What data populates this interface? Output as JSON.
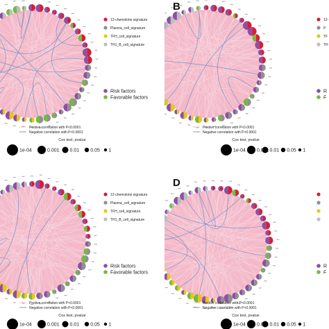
{
  "colors": {
    "background": "#ffffff",
    "circle_fill": "#f4b8c8",
    "positive_edge": "#f7d6e0",
    "negative_edge": "#6f8fc4",
    "risk": "#8e4fa3",
    "favorable": "#76b842",
    "chemokine": "#d2203a",
    "plasma": "#909090",
    "tfh": "#e8c51e",
    "th1b": "#bdbdbd"
  },
  "panels": [
    {
      "letter": "",
      "signatures": [
        "12-chemokine signature",
        "Plasma_cell_signature",
        "TFH_cell_signature",
        "TH1_B_cell_signature"
      ],
      "factors": [
        "Risk factors",
        "Favorable factors"
      ],
      "correlations": [
        "Postive correlation with P<0.0001",
        "Negative correlation with P<0.0001"
      ],
      "size_title": "Cox test, pvalue",
      "size_labels": [
        "1e-04",
        "0.001",
        "0.01",
        "0.05",
        "1"
      ]
    },
    {
      "letter": "B",
      "signatures": [
        "12-",
        "P",
        "TF",
        "TH"
      ],
      "factors": [
        "R",
        "F"
      ],
      "correlations": [
        "Postive correlation with P<0.0001",
        "Negative correlation with P<0.0001"
      ],
      "size_title": "Cox test, pvalue",
      "size_labels": [
        "1e-04",
        "0.001",
        "0.01",
        "0.05",
        "1"
      ]
    },
    {
      "letter": "",
      "signatures": [
        "12-chemokine signature",
        "Plasma_cell_signature",
        "TFH_cell_signature",
        "TH1_B_cell_signature"
      ],
      "factors": [
        "Risk factors",
        "Favorable factors"
      ],
      "correlations": [
        "Postive correlation with P<0.0001",
        "Negative correlation with P<0.0001"
      ],
      "size_title": "Cox test, pvalue",
      "size_labels": [
        "1e-04",
        "0.001",
        "0.01",
        "0.05",
        "1"
      ]
    },
    {
      "letter": "D",
      "signatures": [
        "",
        "",
        "",
        ""
      ],
      "factors": [
        "R",
        "F"
      ],
      "correlations": [
        "Postive correlation with P<0.0001",
        "Negative correlation with P<0.0001"
      ],
      "size_title": "Cox test, pvalue",
      "size_labels": [
        "1e-04",
        "0.001",
        "0.01",
        "0.05",
        "1"
      ]
    }
  ]
}
